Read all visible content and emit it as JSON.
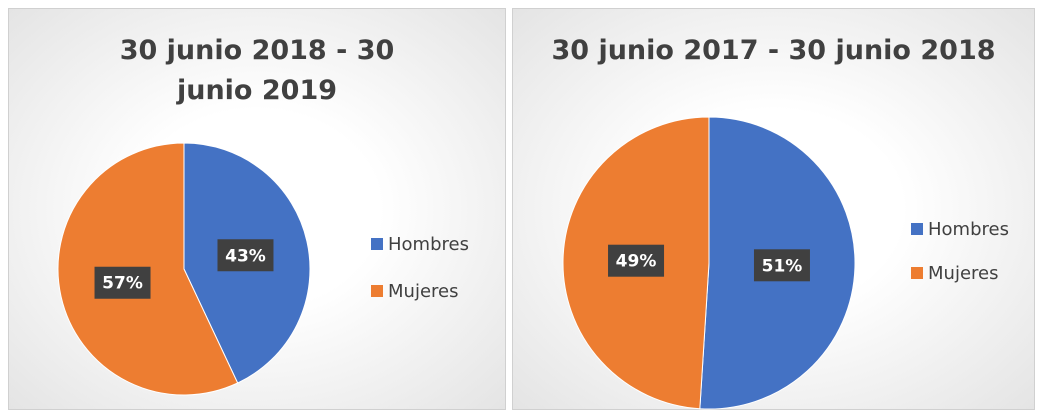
{
  "chart_data": [
    {
      "type": "pie",
      "title": "30 junio 2018 - 30 junio 2019",
      "categories": [
        "Hombres",
        "Mujeres"
      ],
      "values": [
        43,
        57
      ],
      "value_labels": [
        "43%",
        "57%"
      ],
      "colors": [
        "#4472c4",
        "#ed7d31"
      ],
      "legend": "right"
    },
    {
      "type": "pie",
      "title": "30 junio 2017 - 30 junio 2018",
      "categories": [
        "Hombres",
        "Mujeres"
      ],
      "values": [
        51,
        49
      ],
      "value_labels": [
        "51%",
        "49%"
      ],
      "colors": [
        "#4472c4",
        "#ed7d31"
      ],
      "legend": "right"
    }
  ]
}
